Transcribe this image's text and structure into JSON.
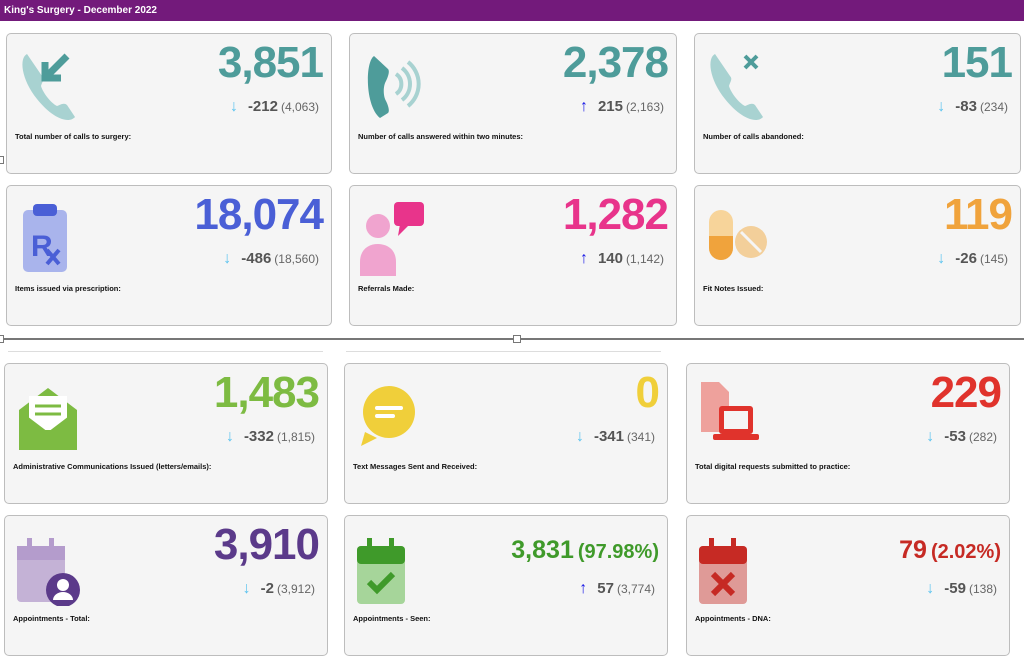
{
  "header": {
    "title": "King's Surgery - December 2022"
  },
  "cards": [
    {
      "icon": "phone-incoming-icon",
      "color": "#4e9c9a",
      "value": "3,851",
      "pct": "",
      "trend": "down",
      "delta": "-212",
      "previous": "(4,063)",
      "label": "Total number of calls to surgery:"
    },
    {
      "icon": "phone-ringing-icon",
      "color": "#4e9c9a",
      "value": "2,378",
      "pct": "",
      "trend": "up",
      "delta": "215",
      "previous": "(2,163)",
      "label": "Number of calls answered within two minutes:"
    },
    {
      "icon": "phone-missed-icon",
      "color": "#4e9c9a",
      "value": "151",
      "pct": "",
      "trend": "down",
      "delta": "-83",
      "previous": "(234)",
      "label": "Number of calls abandoned:"
    },
    {
      "icon": "prescription-clipboard-icon",
      "color": "#4a5fd6",
      "value": "18,074",
      "pct": "",
      "trend": "down",
      "delta": "-486",
      "previous": "(18,560)",
      "label": "Items issued via prescription:"
    },
    {
      "icon": "doctor-referral-icon",
      "color": "#e8348b",
      "value": "1,282",
      "pct": "",
      "trend": "up",
      "delta": "140",
      "previous": "(1,142)",
      "label": "Referrals Made:"
    },
    {
      "icon": "pills-icon",
      "color": "#f0a33c",
      "value": "119",
      "pct": "",
      "trend": "down",
      "delta": "-26",
      "previous": "(145)",
      "label": "Fit Notes Issued:"
    },
    {
      "icon": "envelope-letter-icon",
      "color": "#7dbb42",
      "value": "1,483",
      "pct": "",
      "trend": "down",
      "delta": "-332",
      "previous": "(1,815)",
      "label": "Administrative Communications Issued (letters/emails):"
    },
    {
      "icon": "speech-bubble-icon",
      "color": "#f0cf3a",
      "value": "0",
      "pct": "",
      "trend": "down",
      "delta": "-341",
      "previous": "(341)",
      "label": "Text Messages Sent and Received:"
    },
    {
      "icon": "digital-request-laptop-icon",
      "color": "#e0332c",
      "value": "229",
      "pct": "",
      "trend": "down",
      "delta": "-53",
      "previous": "(282)",
      "label": "Total digital requests submitted to practice:"
    },
    {
      "icon": "calendar-user-icon",
      "color": "#5b3a8a",
      "value": "3,910",
      "pct": "",
      "trend": "down",
      "delta": "-2",
      "previous": "(3,912)",
      "label": "Appointments - Total:"
    },
    {
      "icon": "calendar-check-icon",
      "color": "#3f9a2a",
      "value": "3,831",
      "pct": "(97.98%)",
      "trend": "up",
      "delta": "57",
      "previous": "(3,774)",
      "label": "Appointments - Seen:"
    },
    {
      "icon": "calendar-cross-icon",
      "color": "#c62a24",
      "value": "79",
      "pct": "(2.02%)",
      "trend": "down",
      "delta": "-59",
      "previous": "(138)",
      "label": "Appointments - DNA:"
    }
  ],
  "trend_colors": {
    "up": "#1a1ae6",
    "down": "#5bc3ef"
  }
}
